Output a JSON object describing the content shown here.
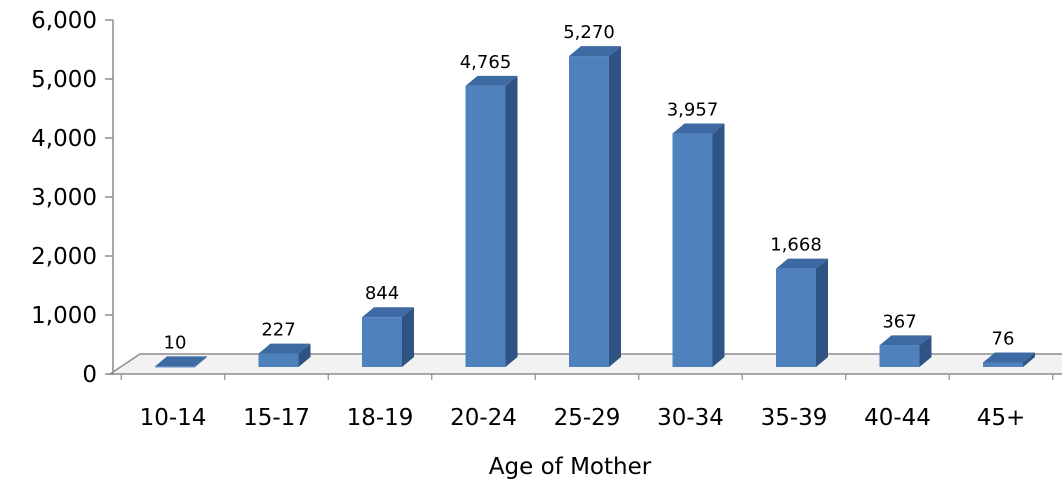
{
  "chart_data": {
    "type": "bar",
    "title": "",
    "xlabel": "Age of Mother",
    "ylabel": "",
    "categories": [
      "10-14",
      "15-17",
      "18-19",
      "20-24",
      "25-29",
      "30-34",
      "35-39",
      "40-44",
      "45+"
    ],
    "values": [
      10,
      227,
      844,
      4765,
      5270,
      3957,
      1668,
      367,
      76
    ],
    "data_labels": [
      "10",
      "227",
      "844",
      "4,765",
      "5,270",
      "3,957",
      "1,668",
      "367",
      "76"
    ],
    "ylim": [
      0,
      6000
    ],
    "yticks": [
      "0",
      "1,000",
      "2,000",
      "3,000",
      "4,000",
      "5,000",
      "6,000"
    ],
    "grid": false,
    "legend": "none",
    "style": "3d-column",
    "colors": {
      "bar_front": "#4f81bd",
      "bar_side": "#2f5382",
      "bar_top": "#3d6aa2",
      "floor_fill": "#f2f2f2",
      "floor_edge": "#8c8c8c",
      "axis": "#8c8c8c"
    }
  }
}
